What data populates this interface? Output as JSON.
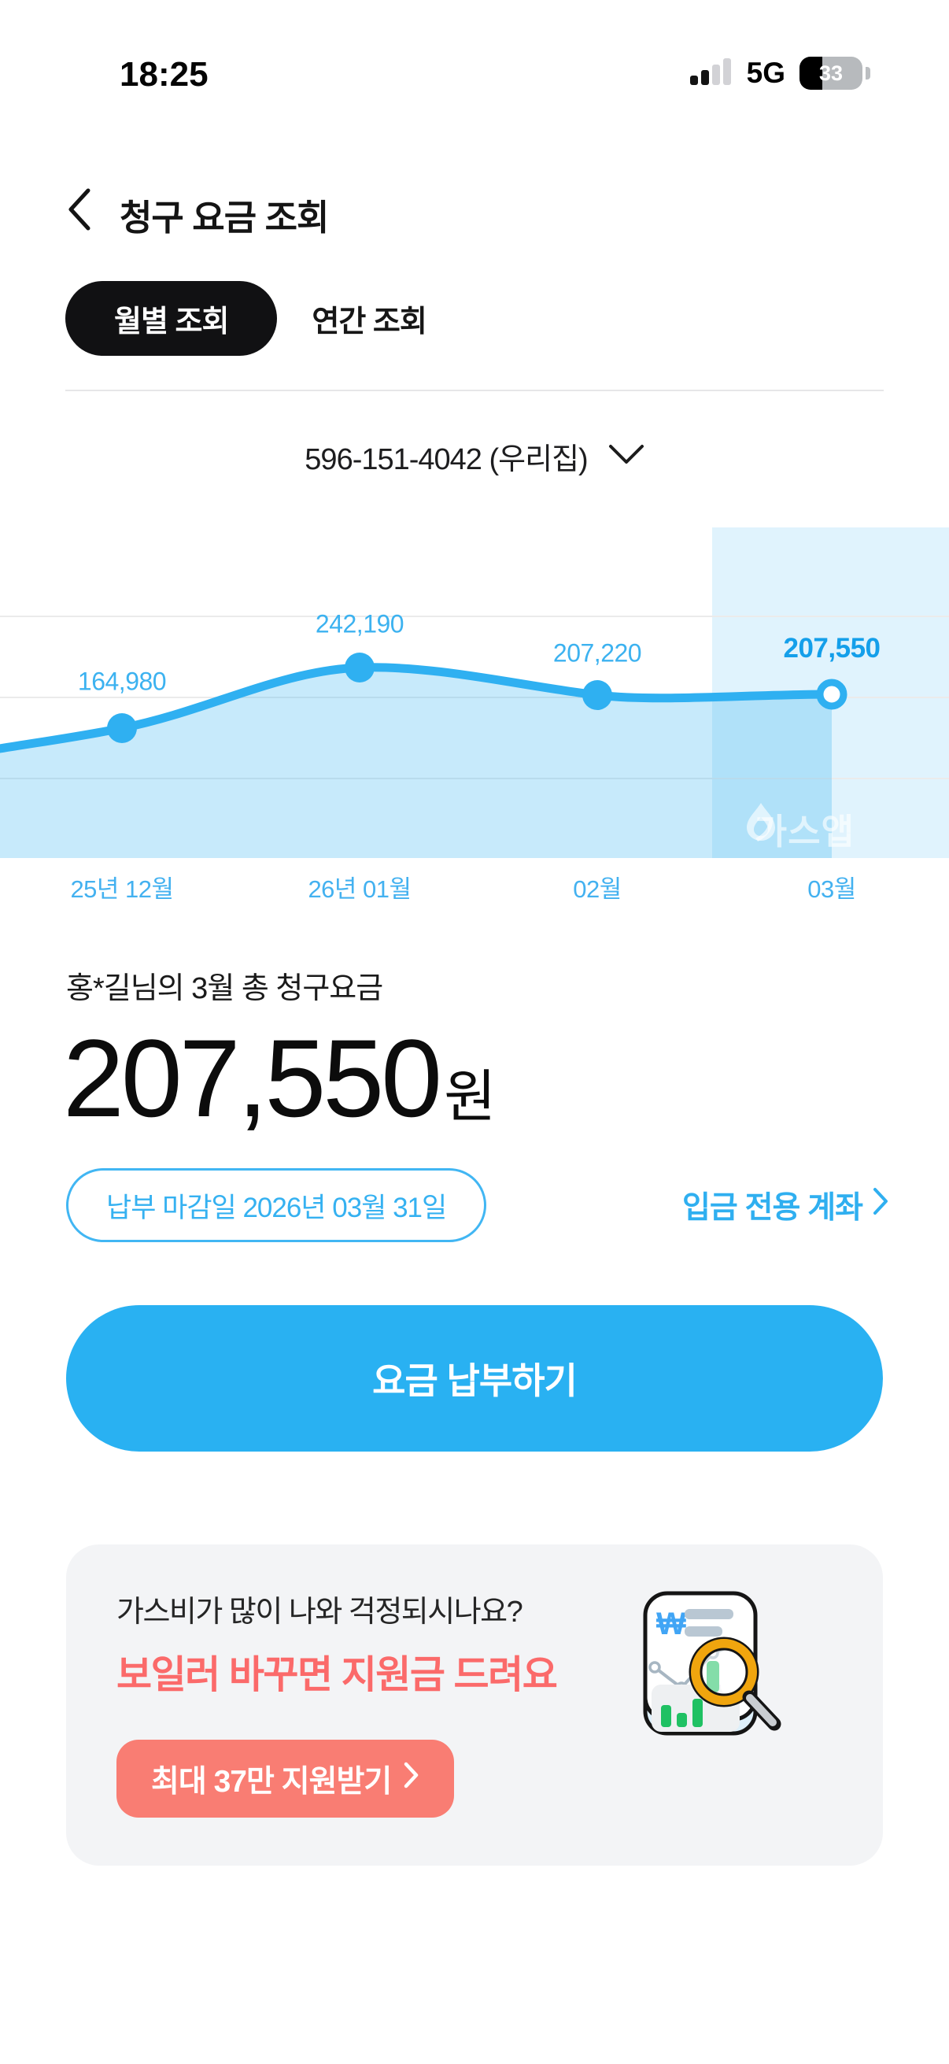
{
  "status_bar": {
    "time": "18:25",
    "network": "5G",
    "battery_percent": "33"
  },
  "header": {
    "title": "청구 요금 조회"
  },
  "tabs": {
    "monthly": "월별 조회",
    "yearly": "연간 조회"
  },
  "account_selector": {
    "value": "596-151-4042 (우리집)"
  },
  "chart_data": {
    "type": "area",
    "title": "",
    "categories": [
      "25년 12월",
      "26년 01월",
      "02월",
      "03월"
    ],
    "values": [
      164980,
      242190,
      207220,
      207550
    ],
    "value_labels": [
      "164,980",
      "242,190",
      "207,220",
      "207,550"
    ],
    "highlighted_index": 3,
    "watermark": "가스앱",
    "line_color": "#2fb0f1",
    "fill_color": "rgba(47,176,241,0.27)",
    "highlight_color": "#e0f3fd",
    "grid": true,
    "legend": false
  },
  "summary": {
    "owner_line": "홍*길님의 3월 총 청구요금",
    "amount": "207,550",
    "currency_suffix": "원",
    "due_pill": "납부 마감일 2026년 03월 31일",
    "account_link": "입금 전용 계좌"
  },
  "pay_button": {
    "label": "요금 납부하기"
  },
  "promo": {
    "question": "가스비가 많이 나와 걱정되시나요?",
    "headline": "보일러 바꾸면 지원금 드려요",
    "cta": "최대 37만 지원받기"
  }
}
